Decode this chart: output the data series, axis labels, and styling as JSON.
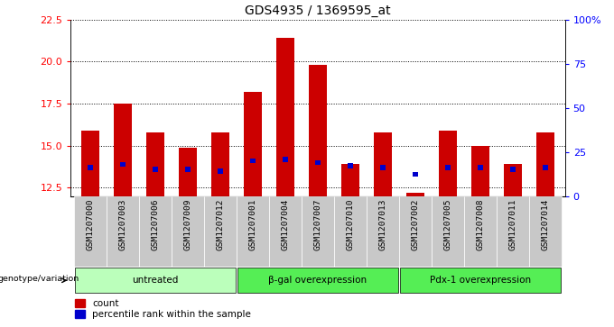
{
  "title": "GDS4935 / 1369595_at",
  "samples": [
    "GSM1207000",
    "GSM1207003",
    "GSM1207006",
    "GSM1207009",
    "GSM1207012",
    "GSM1207001",
    "GSM1207004",
    "GSM1207007",
    "GSM1207010",
    "GSM1207013",
    "GSM1207002",
    "GSM1207005",
    "GSM1207008",
    "GSM1207011",
    "GSM1207014"
  ],
  "counts": [
    15.9,
    17.5,
    15.8,
    14.9,
    15.8,
    18.2,
    21.4,
    19.8,
    13.9,
    15.8,
    12.2,
    15.9,
    15.0,
    13.9,
    15.8
  ],
  "pct_values": [
    13.7,
    13.9,
    13.6,
    13.6,
    13.5,
    14.1,
    14.2,
    14.0,
    13.8,
    13.7,
    13.3,
    13.7,
    13.7,
    13.6,
    13.7
  ],
  "pct_rank": [
    20,
    22,
    18,
    18,
    17,
    27,
    28,
    26,
    21,
    19,
    7,
    20,
    20,
    18,
    20
  ],
  "groups": [
    {
      "label": "untreated",
      "start": 0,
      "end": 5,
      "color": "#bbffbb"
    },
    {
      "label": "β-gal overexpression",
      "start": 5,
      "end": 10,
      "color": "#55ee55"
    },
    {
      "label": "Pdx-1 overexpression",
      "start": 10,
      "end": 15,
      "color": "#55ee55"
    }
  ],
  "ylim_left": [
    12.0,
    22.5
  ],
  "ylim_right": [
    0,
    100
  ],
  "yticks_left": [
    12.5,
    15.0,
    17.5,
    20.0,
    22.5
  ],
  "yticks_right": [
    0,
    25,
    50,
    75,
    100
  ],
  "bar_color": "#cc0000",
  "pct_color": "#0000cc",
  "bg_color": "#c8c8c8",
  "bar_width": 0.55,
  "pct_bar_width": 0.18
}
